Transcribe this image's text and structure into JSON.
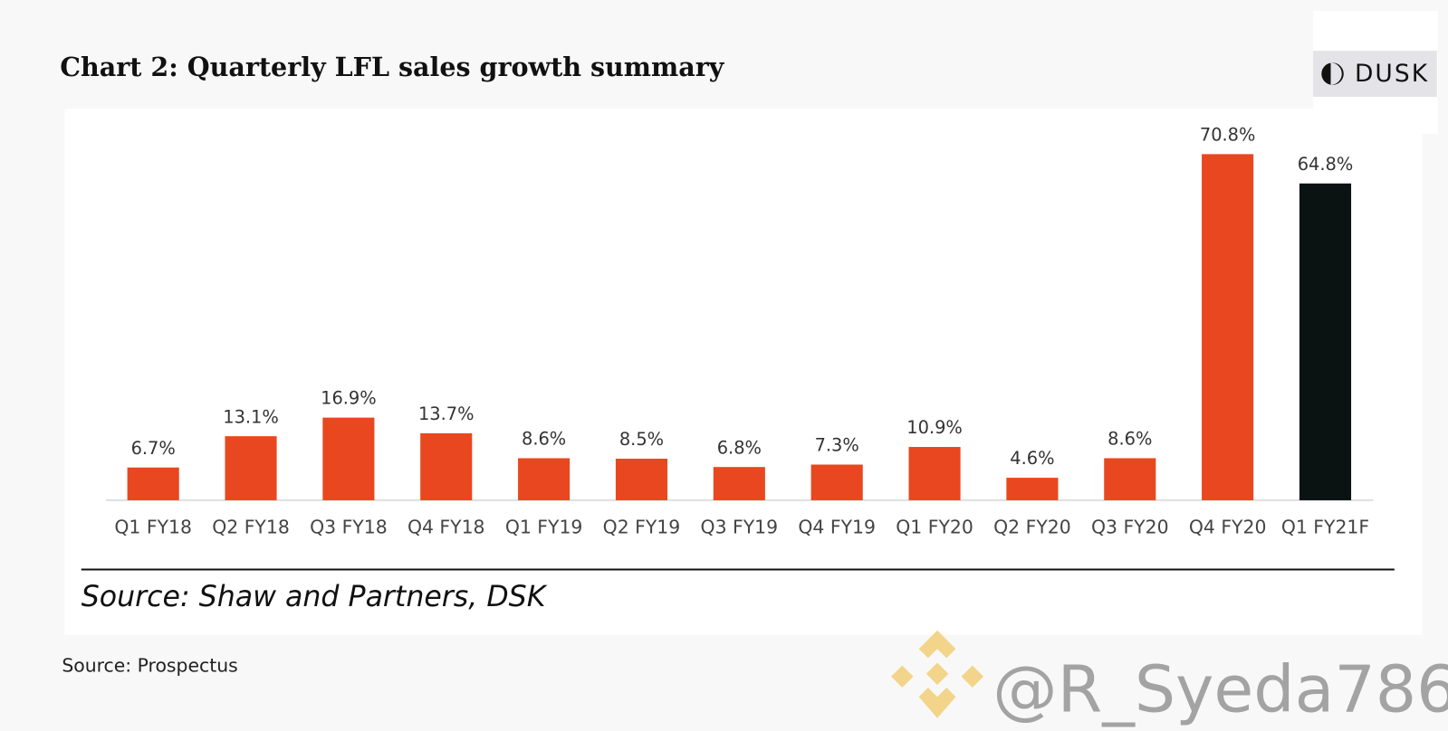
{
  "chart_data": {
    "type": "bar",
    "title": "Chart 2: Quarterly LFL sales growth summary",
    "categories": [
      "Q1 FY18",
      "Q2 FY18",
      "Q3 FY18",
      "Q4 FY18",
      "Q1 FY19",
      "Q2 FY19",
      "Q3 FY19",
      "Q4 FY19",
      "Q1 FY20",
      "Q2 FY20",
      "Q3 FY20",
      "Q4 FY20",
      "Q1 FY21F"
    ],
    "values": [
      6.7,
      13.1,
      16.9,
      13.7,
      8.6,
      8.5,
      6.8,
      7.3,
      10.9,
      4.6,
      8.6,
      70.8,
      64.8
    ],
    "value_labels": [
      "6.7%",
      "13.1%",
      "16.9%",
      "13.7%",
      "8.6%",
      "8.5%",
      "6.8%",
      "7.3%",
      "10.9%",
      "4.6%",
      "8.6%",
      "70.8%",
      "64.8%"
    ],
    "colors": [
      "#e8471f",
      "#e8471f",
      "#e8471f",
      "#e8471f",
      "#e8471f",
      "#e8471f",
      "#e8471f",
      "#e8471f",
      "#e8471f",
      "#e8471f",
      "#e8471f",
      "#e8471f",
      "#0a1212"
    ],
    "source": "Source: Shaw and Partners, DSK"
  },
  "footer": "Source: Prospectus",
  "logo": "DUSK",
  "watermark": "@R_Syeda786"
}
